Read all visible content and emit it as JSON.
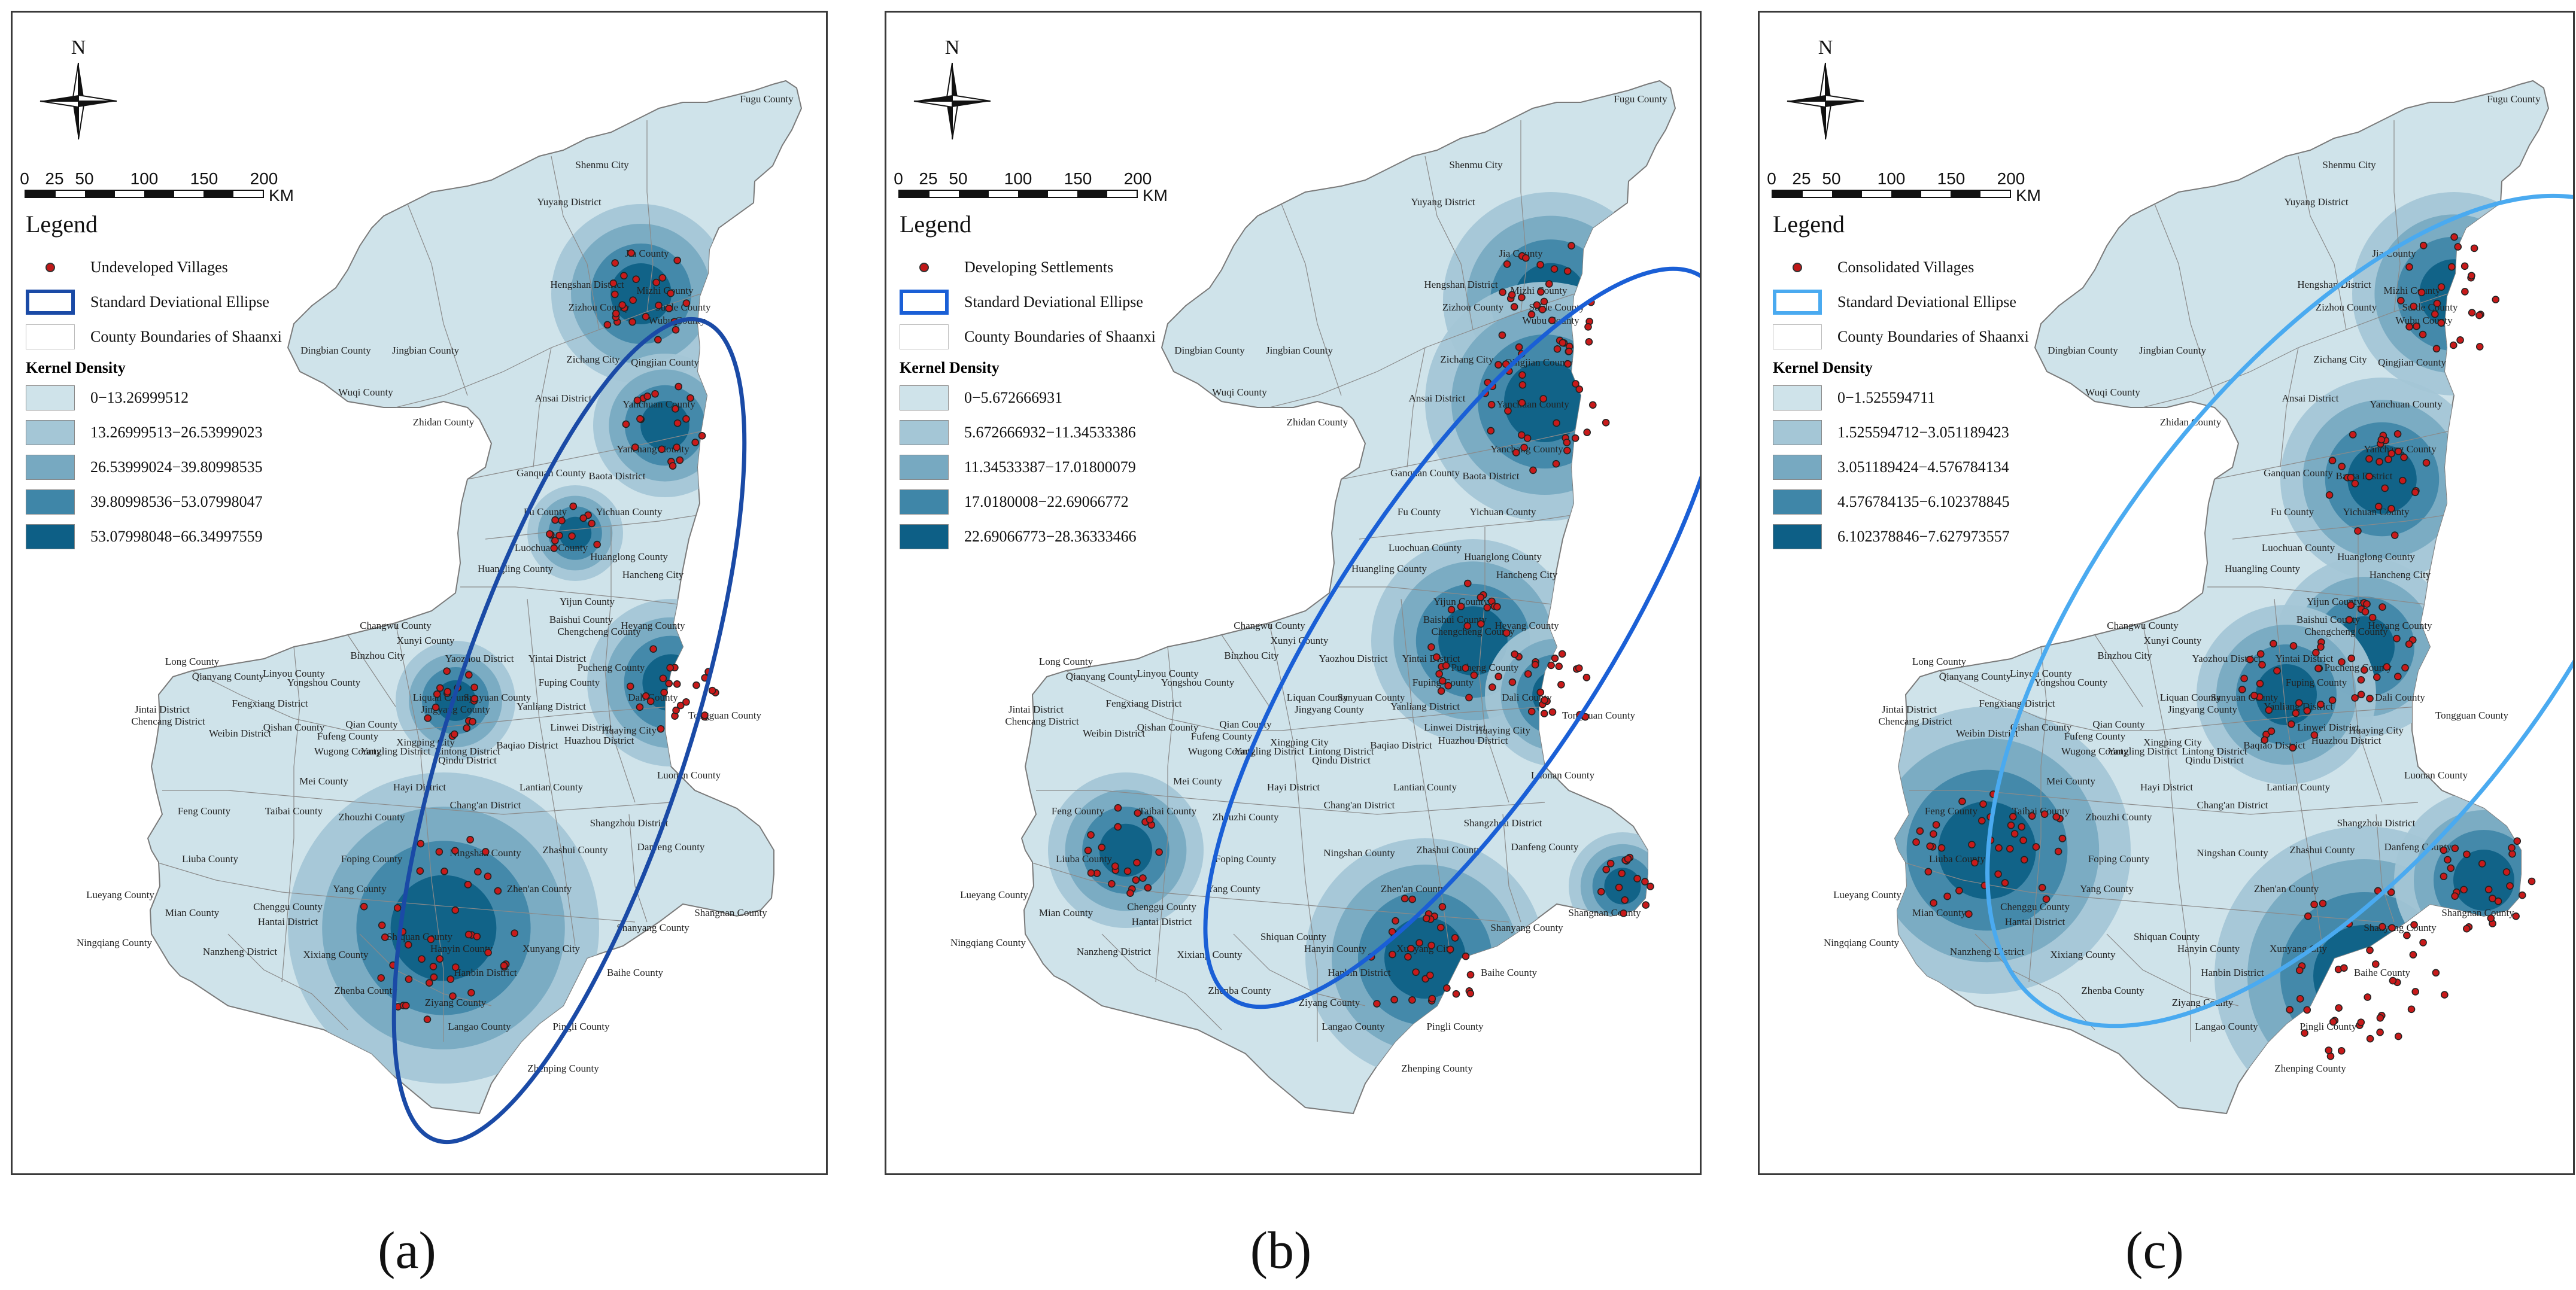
{
  "panels": [
    {
      "id": "a",
      "caption": "(a)",
      "north_label": "N",
      "scale": {
        "ticks": [
          "0",
          "25",
          "50",
          "100",
          "150",
          "200"
        ],
        "unit": "KM"
      },
      "legend_title": "Legend",
      "points_label": "Undeveloped Villages",
      "ellipse_label": "Standard Deviational Ellipse",
      "boundary_label": "County Boundaries of Shaanxi",
      "kernel_title": "Kernel Density",
      "ellipse_color": "#1a4aa6",
      "classes": [
        {
          "range": "0−13.26999512",
          "color": "#cfe3ea"
        },
        {
          "range": "13.26999513−26.53999023",
          "color": "#a4c6d6"
        },
        {
          "range": "26.53999024−39.80998535",
          "color": "#77a9c1"
        },
        {
          "range": "39.80998536−53.07998047",
          "color": "#3f86a8"
        },
        {
          "range": "53.07998048−66.34997559",
          "color": "#0d5f86"
        }
      ]
    },
    {
      "id": "b",
      "caption": "(b)",
      "north_label": "N",
      "scale": {
        "ticks": [
          "0",
          "25",
          "50",
          "100",
          "150",
          "200"
        ],
        "unit": "KM"
      },
      "legend_title": "Legend",
      "points_label": "Developing Settlements",
      "ellipse_label": "Standard Deviational Ellipse",
      "boundary_label": "County Boundaries of Shaanxi",
      "kernel_title": "Kernel Density",
      "ellipse_color": "#1a5fd6",
      "classes": [
        {
          "range": "0−5.672666931",
          "color": "#cfe3ea"
        },
        {
          "range": "5.672666932−11.34533386",
          "color": "#a4c6d6"
        },
        {
          "range": "11.34533387−17.01800079",
          "color": "#77a9c1"
        },
        {
          "range": "17.0180008−22.69066772",
          "color": "#3f86a8"
        },
        {
          "range": "22.69066773−28.36333466",
          "color": "#0d5f86"
        }
      ]
    },
    {
      "id": "c",
      "caption": "(c)",
      "north_label": "N",
      "scale": {
        "ticks": [
          "0",
          "25",
          "50",
          "100",
          "150",
          "200"
        ],
        "unit": "KM"
      },
      "legend_title": "Legend",
      "points_label": "Consolidated Villages",
      "ellipse_label": "Standard Deviational Ellipse",
      "boundary_label": "County Boundaries of Shaanxi",
      "kernel_title": "Kernel Density",
      "ellipse_color": "#4aaaf0",
      "classes": [
        {
          "range": "0−1.525594711",
          "color": "#cfe3ea"
        },
        {
          "range": "1.525594712−3.051189423",
          "color": "#a4c6d6"
        },
        {
          "range": "3.051189424−4.576784134",
          "color": "#77a9c1"
        },
        {
          "range": "4.576784135−6.102378845",
          "color": "#3f86a8"
        },
        {
          "range": "6.102378846−7.627973557",
          "color": "#0d5f86"
        }
      ]
    }
  ],
  "place_names": [
    "Fugu County",
    "Shenmu City",
    "Yuyang District",
    "Jia County",
    "Hengshan District",
    "Mizhi County",
    "Wubu County",
    "Suide County",
    "Zizhou County",
    "Dingbian County",
    "Jingbian County",
    "Qingjian County",
    "Zichang City",
    "Wuqi County",
    "Ansai District",
    "Yanchuan County",
    "Zhidan County",
    "Yanchang County",
    "Ganquan County",
    "Baota District",
    "Fu County",
    "Yichuan County",
    "Luochuan County",
    "Huanglong County",
    "Huangling County",
    "Hancheng City",
    "Yijun County",
    "Heyang County",
    "Changwu County",
    "Xunyi County",
    "Baishui County",
    "Chengcheng County",
    "Binzhou City",
    "Yaozhou District",
    "Yintai District",
    "Pucheng County",
    "Long County",
    "Linyou County",
    "Fuping County",
    "Dali County",
    "Qianyang County",
    "Yongshou County",
    "Liquan County",
    "Sanyuan County",
    "Jingyang County",
    "Yanliang District",
    "Tongguan County",
    "Jintai District",
    "Fengxiang District",
    "Weibin District",
    "Chencang District",
    "Qishan County",
    "Qian County",
    "Wugong County",
    "Fufeng County",
    "Xingping City",
    "Yangling District",
    "Lintong District",
    "Baqiao District",
    "Qindu District",
    "Linwei District",
    "Huaying City",
    "Huazhou District",
    "Mei County",
    "Hayi District",
    "Lantian County",
    "Luonan County",
    "Feng County",
    "Taibai County",
    "Zhouzhi County",
    "Chang'an District",
    "Shangzhou District",
    "Liuba County",
    "Foping County",
    "Ningshan County",
    "Zhashui County",
    "Danfeng County",
    "Lueyang County",
    "Yang County",
    "Mian County",
    "Chenggu County",
    "Hantai District",
    "Zhen'an County",
    "Shanyang County",
    "Shangnan County",
    "Ningqiang County",
    "Nanzheng District",
    "Xixiang County",
    "Shiquan County",
    "Hanyin County",
    "Xunyang City",
    "Hanbin District",
    "Baihe County",
    "Zhenba County",
    "Ziyang County",
    "Langao County",
    "Pingli County",
    "Zhenping County"
  ]
}
